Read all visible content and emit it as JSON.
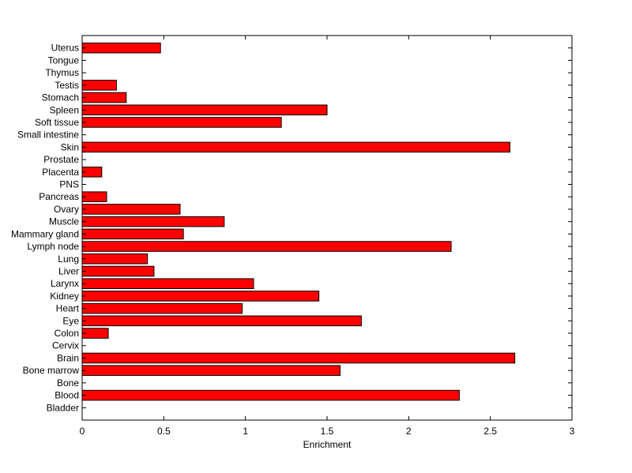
{
  "chart_data": {
    "type": "bar",
    "orientation": "horizontal",
    "title": "",
    "xlabel": "Enrichment",
    "ylabel": "",
    "xlim": [
      0,
      3
    ],
    "xticks": [
      0,
      0.5,
      1,
      1.5,
      2,
      2.5,
      3
    ],
    "xtick_labels": [
      "0",
      "0.5",
      "1",
      "1.5",
      "2",
      "2.5",
      "3"
    ],
    "grid": false,
    "legend": "none",
    "bar_color": "#ff0000",
    "bar_edge_color": "#000000",
    "categories": [
      "Bladder",
      "Blood",
      "Bone",
      "Bone marrow",
      "Brain",
      "Cervix",
      "Colon",
      "Eye",
      "Heart",
      "Kidney",
      "Larynx",
      "Liver",
      "Lung",
      "Lymph node",
      "Mammary gland",
      "Muscle",
      "Ovary",
      "Pancreas",
      "PNS",
      "Placenta",
      "Prostate",
      "Skin",
      "Small intestine",
      "Soft tissue",
      "Spleen",
      "Stomach",
      "Testis",
      "Thymus",
      "Tongue",
      "Uterus"
    ],
    "values": [
      0,
      2.31,
      0,
      1.58,
      2.65,
      0,
      0.16,
      1.71,
      0.98,
      1.45,
      1.05,
      0.44,
      0.4,
      2.26,
      0.62,
      0.87,
      0.6,
      0.15,
      0,
      0.12,
      0,
      2.62,
      0,
      1.22,
      1.5,
      0.27,
      0.21,
      0,
      0,
      0.48
    ]
  }
}
